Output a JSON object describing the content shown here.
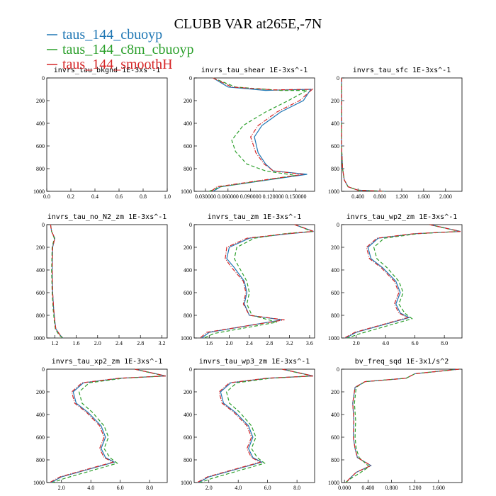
{
  "figure": {
    "title": "CLUBB VAR at265E,-7N",
    "legend": [
      {
        "label": "taus_144_cbuoyp",
        "color": "#1f77b4",
        "style": "solid"
      },
      {
        "label": "taus_144_c8m_cbuoyp",
        "color": "#2ca02c",
        "style": "dashed"
      },
      {
        "label": "taus_144_smoothH",
        "color": "#d62728",
        "style": "dashdot"
      }
    ]
  },
  "chart_data": [
    {
      "type": "line",
      "title": "invrs_tau_bkgnd 1E-3xs^-1",
      "xlim": [
        0,
        1
      ],
      "ylim": [
        1000,
        0
      ],
      "xticks": [
        0,
        0.2,
        0.4,
        0.6,
        0.8,
        1.0
      ],
      "xticklabels": [
        "0.0",
        "0.2",
        "0.4",
        "0.6",
        "0.8",
        "1.0"
      ],
      "yticks": [
        0,
        200,
        400,
        600,
        800,
        1000
      ],
      "series": []
    },
    {
      "type": "line",
      "title": "invrs_tau_shear 1E-3xs^-1",
      "xlim": [
        0.015,
        0.175
      ],
      "ylim": [
        1000,
        0
      ],
      "xticks": [
        0.03,
        0.06,
        0.09,
        0.12,
        0.15
      ],
      "xticklabels": [
        "0.030000",
        "0.060000",
        "0.090000",
        "0.120000",
        "0.150000"
      ],
      "yticks": [
        0,
        200,
        400,
        600,
        800,
        1000
      ],
      "series": [
        {
          "name": "taus_144_cbuoyp",
          "x": [
            0.04,
            0.06,
            0.11,
            0.17,
            0.16,
            0.13,
            0.105,
            0.095,
            0.1,
            0.11,
            0.12,
            0.165,
            0.05,
            0.04
          ],
          "y": [
            0,
            80,
            110,
            100,
            200,
            300,
            420,
            520,
            660,
            760,
            820,
            850,
            960,
            1000
          ]
        },
        {
          "name": "taus_144_c8m_cbuoyp",
          "x": [
            0.04,
            0.07,
            0.13,
            0.165,
            0.14,
            0.11,
            0.08,
            0.065,
            0.07,
            0.085,
            0.11,
            0.15,
            0.05,
            0.035
          ],
          "y": [
            0,
            80,
            110,
            110,
            200,
            300,
            420,
            550,
            650,
            760,
            820,
            860,
            960,
            1000
          ]
        },
        {
          "name": "taus_144_smoothH",
          "x": [
            0.04,
            0.065,
            0.12,
            0.172,
            0.155,
            0.125,
            0.1,
            0.09,
            0.097,
            0.108,
            0.12,
            0.16,
            0.045,
            0.038
          ],
          "y": [
            0,
            80,
            105,
            100,
            200,
            300,
            420,
            520,
            660,
            760,
            820,
            850,
            960,
            1000
          ]
        }
      ]
    },
    {
      "type": "line",
      "title": "invrs_tau_sfc 1E-3xs^-1",
      "xlim": [
        0.1,
        2.3
      ],
      "ylim": [
        1000,
        0
      ],
      "xticks": [
        0.4,
        0.8,
        1.2,
        1.6,
        2.0
      ],
      "xticklabels": [
        "0.400",
        "0.800",
        "1.200",
        "1.600",
        "2.000"
      ],
      "yticks": [
        0,
        200,
        400,
        600,
        800,
        1000
      ],
      "series": [
        {
          "name": "taus_144_cbuoyp",
          "x": [
            0.1,
            0.1,
            0.12,
            0.15,
            0.22,
            0.4,
            0.9
          ],
          "y": [
            0,
            600,
            800,
            900,
            960,
            990,
            1000
          ]
        },
        {
          "name": "taus_144_c8m_cbuoyp",
          "x": [
            0.1,
            0.1,
            0.12,
            0.15,
            0.22,
            0.4,
            0.9
          ],
          "y": [
            0,
            600,
            800,
            900,
            960,
            990,
            1000
          ]
        },
        {
          "name": "taus_144_smoothH",
          "x": [
            0.1,
            0.1,
            0.12,
            0.15,
            0.22,
            0.4,
            0.9
          ],
          "y": [
            0,
            600,
            800,
            900,
            960,
            990,
            1000
          ]
        }
      ]
    },
    {
      "type": "line",
      "title": "invrs_tau_no_N2_zm 1E-3xs^-1",
      "xlim": [
        1.05,
        3.3
      ],
      "ylim": [
        1000,
        0
      ],
      "xticks": [
        1.2,
        1.6,
        2.0,
        2.4,
        2.8,
        3.2
      ],
      "xticklabels": [
        "1.2",
        "1.6",
        "2.0",
        "2.4",
        "2.8",
        "3.2"
      ],
      "yticks": [
        0,
        200,
        400,
        600,
        800,
        1000
      ],
      "series": [
        {
          "name": "taus_144_cbuoyp",
          "x": [
            1.12,
            1.14,
            1.2,
            1.16,
            1.15,
            1.16,
            1.18,
            1.2,
            1.22,
            1.3,
            1.35
          ],
          "y": [
            0,
            60,
            120,
            200,
            400,
            600,
            750,
            850,
            920,
            975,
            1000
          ]
        },
        {
          "name": "taus_144_c8m_cbuoyp",
          "x": [
            1.12,
            1.14,
            1.19,
            1.15,
            1.14,
            1.15,
            1.17,
            1.19,
            1.21,
            1.28,
            1.35
          ],
          "y": [
            0,
            60,
            120,
            200,
            400,
            600,
            750,
            850,
            920,
            975,
            1000
          ]
        },
        {
          "name": "taus_144_smoothH",
          "x": [
            1.12,
            1.14,
            1.2,
            1.16,
            1.15,
            1.16,
            1.18,
            1.2,
            1.22,
            1.3,
            1.35
          ],
          "y": [
            0,
            60,
            120,
            200,
            400,
            600,
            750,
            850,
            920,
            975,
            1000
          ]
        }
      ]
    },
    {
      "type": "line",
      "title": "invrs_tau_zm 1E-3xs^-1",
      "xlim": [
        1.3,
        3.7
      ],
      "ylim": [
        1000,
        0
      ],
      "xticks": [
        1.6,
        2.0,
        2.4,
        2.8,
        3.2,
        3.6
      ],
      "xticklabels": [
        "1.6",
        "2.0",
        "2.4",
        "2.8",
        "3.2",
        "3.6"
      ],
      "yticks": [
        0,
        200,
        400,
        600,
        800,
        1000
      ],
      "series": [
        {
          "name": "taus_144_cbuoyp",
          "x": [
            3.3,
            3.68,
            3.2,
            2.4,
            2.0,
            1.95,
            2.1,
            2.3,
            2.35,
            2.3,
            2.4,
            3.05,
            1.6,
            1.45
          ],
          "y": [
            0,
            60,
            80,
            120,
            200,
            300,
            380,
            500,
            600,
            700,
            800,
            840,
            950,
            1000
          ]
        },
        {
          "name": "taus_144_c8m_cbuoyp",
          "x": [
            3.3,
            3.65,
            3.1,
            2.5,
            2.15,
            2.1,
            2.2,
            2.35,
            2.4,
            2.35,
            2.45,
            2.95,
            1.7,
            1.5
          ],
          "y": [
            0,
            60,
            80,
            120,
            200,
            300,
            380,
            500,
            600,
            700,
            800,
            860,
            960,
            1000
          ]
        },
        {
          "name": "taus_144_smoothH",
          "x": [
            3.3,
            3.68,
            3.15,
            2.35,
            1.95,
            1.92,
            2.05,
            2.28,
            2.33,
            2.28,
            2.4,
            3.1,
            1.55,
            1.42
          ],
          "y": [
            0,
            60,
            80,
            120,
            200,
            300,
            380,
            500,
            600,
            700,
            800,
            840,
            950,
            1000
          ]
        }
      ]
    },
    {
      "type": "line",
      "title": "invrs_tau_wp2_zm 1E-3xs^-1",
      "xlim": [
        1.0,
        9.2
      ],
      "ylim": [
        1000,
        0
      ],
      "xticks": [
        2.0,
        4.0,
        6.0,
        8.0
      ],
      "xticklabels": [
        "2.0",
        "4.0",
        "6.0",
        "8.0"
      ],
      "yticks": [
        0,
        200,
        400,
        600,
        800,
        1000
      ],
      "series": [
        {
          "name": "taus_144_cbuoyp",
          "x": [
            7.0,
            9.1,
            6.0,
            3.5,
            2.8,
            3.0,
            3.8,
            4.7,
            5.0,
            4.7,
            5.0,
            5.6,
            2.0,
            1.3
          ],
          "y": [
            0,
            60,
            80,
            120,
            200,
            300,
            380,
            500,
            600,
            700,
            780,
            820,
            950,
            1000
          ]
        },
        {
          "name": "taus_144_c8m_cbuoyp",
          "x": [
            7.0,
            9.0,
            6.2,
            3.9,
            3.2,
            3.4,
            4.1,
            4.9,
            5.2,
            4.9,
            5.3,
            5.8,
            2.3,
            1.4
          ],
          "y": [
            0,
            60,
            80,
            120,
            200,
            300,
            380,
            500,
            600,
            700,
            780,
            830,
            960,
            1000
          ]
        },
        {
          "name": "taus_144_smoothH",
          "x": [
            7.0,
            9.1,
            5.9,
            3.4,
            2.7,
            2.9,
            3.7,
            4.6,
            4.9,
            4.6,
            4.9,
            5.5,
            1.9,
            1.2
          ],
          "y": [
            0,
            60,
            80,
            120,
            200,
            300,
            380,
            500,
            600,
            700,
            780,
            820,
            950,
            1000
          ]
        }
      ]
    },
    {
      "type": "line",
      "title": "invrs_tau_xp2_zm 1E-3xs^-1",
      "xlim": [
        1.0,
        9.2
      ],
      "ylim": [
        1000,
        0
      ],
      "xticks": [
        2.0,
        4.0,
        6.0,
        8.0
      ],
      "xticklabels": [
        "2.0",
        "4.0",
        "6.0",
        "8.0"
      ],
      "yticks": [
        0,
        200,
        400,
        600,
        800,
        1000
      ],
      "series": [
        {
          "name": "taus_144_cbuoyp",
          "x": [
            7.0,
            9.1,
            6.0,
            3.5,
            2.8,
            3.0,
            3.8,
            4.7,
            5.0,
            4.7,
            5.0,
            5.6,
            2.0,
            1.3
          ],
          "y": [
            0,
            60,
            80,
            120,
            200,
            300,
            380,
            500,
            600,
            700,
            780,
            820,
            950,
            1000
          ]
        },
        {
          "name": "taus_144_c8m_cbuoyp",
          "x": [
            7.0,
            9.0,
            6.2,
            3.9,
            3.2,
            3.4,
            4.1,
            4.9,
            5.2,
            4.9,
            5.3,
            5.8,
            2.3,
            1.4
          ],
          "y": [
            0,
            60,
            80,
            120,
            200,
            300,
            380,
            500,
            600,
            700,
            780,
            830,
            960,
            1000
          ]
        },
        {
          "name": "taus_144_smoothH",
          "x": [
            7.0,
            9.1,
            5.9,
            3.4,
            2.7,
            2.9,
            3.7,
            4.6,
            4.9,
            4.6,
            4.9,
            5.5,
            1.9,
            1.2
          ],
          "y": [
            0,
            60,
            80,
            120,
            200,
            300,
            380,
            500,
            600,
            700,
            780,
            820,
            950,
            1000
          ]
        }
      ]
    },
    {
      "type": "line",
      "title": "invrs_tau_wp3_zm 1E-3xs^-1",
      "xlim": [
        1.0,
        9.2
      ],
      "ylim": [
        1000,
        0
      ],
      "xticks": [
        2.0,
        4.0,
        6.0,
        8.0
      ],
      "xticklabels": [
        "2.0",
        "4.0",
        "6.0",
        "8.0"
      ],
      "yticks": [
        0,
        200,
        400,
        600,
        800,
        1000
      ],
      "series": [
        {
          "name": "taus_144_cbuoyp",
          "x": [
            7.0,
            9.1,
            6.0,
            3.5,
            2.8,
            3.0,
            3.8,
            4.7,
            5.0,
            4.7,
            5.0,
            5.6,
            2.0,
            1.3
          ],
          "y": [
            0,
            60,
            80,
            120,
            200,
            300,
            380,
            500,
            600,
            700,
            780,
            820,
            950,
            1000
          ]
        },
        {
          "name": "taus_144_c8m_cbuoyp",
          "x": [
            7.0,
            9.0,
            6.2,
            3.9,
            3.2,
            3.4,
            4.1,
            4.9,
            5.2,
            4.9,
            5.3,
            5.8,
            2.3,
            1.4
          ],
          "y": [
            0,
            60,
            80,
            120,
            200,
            300,
            380,
            500,
            600,
            700,
            780,
            830,
            960,
            1000
          ]
        },
        {
          "name": "taus_144_smoothH",
          "x": [
            7.0,
            9.1,
            5.9,
            3.4,
            2.7,
            2.9,
            3.7,
            4.6,
            4.9,
            4.6,
            4.9,
            5.5,
            1.9,
            1.2
          ],
          "y": [
            0,
            60,
            80,
            120,
            200,
            300,
            380,
            500,
            600,
            700,
            780,
            820,
            950,
            1000
          ]
        }
      ]
    },
    {
      "type": "line",
      "title": "bv_freq_sqd 1E-3x1/s^2",
      "xlim": [
        -0.05,
        2.0
      ],
      "ylim": [
        1000,
        0
      ],
      "xticks": [
        0.0,
        0.4,
        0.8,
        1.2,
        1.6
      ],
      "xticklabels": [
        "0.000",
        "0.400",
        "0.800",
        "1.200",
        "1.600"
      ],
      "yticks": [
        0,
        200,
        400,
        600,
        800,
        1000
      ],
      "series": [
        {
          "name": "taus_144_cbuoyp",
          "x": [
            1.95,
            1.2,
            1.05,
            0.35,
            0.18,
            0.14,
            0.16,
            0.15,
            0.18,
            0.22,
            0.45,
            0.2,
            0.1,
            0.02
          ],
          "y": [
            0,
            40,
            80,
            110,
            160,
            300,
            450,
            600,
            700,
            780,
            850,
            910,
            960,
            1000
          ]
        },
        {
          "name": "taus_144_c8m_cbuoyp",
          "x": [
            1.95,
            1.2,
            1.05,
            0.35,
            0.2,
            0.17,
            0.19,
            0.18,
            0.2,
            0.25,
            0.42,
            0.25,
            0.12,
            0.02
          ],
          "y": [
            0,
            40,
            80,
            110,
            160,
            300,
            450,
            600,
            700,
            780,
            860,
            920,
            960,
            1000
          ]
        },
        {
          "name": "taus_144_smoothH",
          "x": [
            1.95,
            1.2,
            1.05,
            0.35,
            0.18,
            0.14,
            0.16,
            0.15,
            0.18,
            0.22,
            0.45,
            0.2,
            0.1,
            0.02
          ],
          "y": [
            0,
            40,
            80,
            110,
            160,
            300,
            450,
            600,
            700,
            780,
            850,
            910,
            960,
            1000
          ]
        }
      ]
    }
  ]
}
